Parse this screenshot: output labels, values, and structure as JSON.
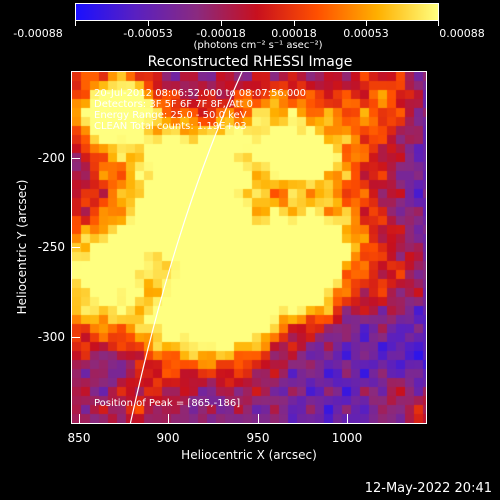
{
  "colorbar": {
    "tick_labels": [
      "-0.00088",
      "-0.00053",
      "-0.00018",
      "0.00018",
      "0.00053",
      "0.00088"
    ],
    "units": "(photons cm⁻² s⁻¹ asec⁻²)",
    "colors": [
      "#1a10ff",
      "#5a20c0",
      "#8a2a80",
      "#c8101e",
      "#ff5000",
      "#ffb000",
      "#ffff80"
    ]
  },
  "title": "Reconstructed RHESSI Image",
  "overlay": {
    "time_range": "20-Jul-2012 08:06:52.000 to 08:07:56.000",
    "detectors": "Detectors: 3F 5F 6F 7F 8F, Att 0",
    "energy_range": "Energy Range: 25.0 - 50.0 keV",
    "method_counts": "CLEAN   Total counts: 1.19E+03",
    "peak_position": "Position of Peak = [865,-186]"
  },
  "chart_data": {
    "type": "heatmap",
    "title": "Reconstructed RHESSI Image",
    "xlabel": "Heliocentric X (arcsec)",
    "ylabel": "Heliocentric Y (arcsec)",
    "xlim": [
      848,
      1040
    ],
    "ylim": [
      -348,
      -172
    ],
    "x_ticks": [
      850,
      900,
      950,
      1000
    ],
    "y_ticks": [
      -200,
      -250,
      -300
    ],
    "colorbar_range": [
      -0.00088,
      0.00088
    ],
    "peak_position": [
      865,
      -186
    ]
  },
  "timestamp": "12-May-2022 20:41"
}
